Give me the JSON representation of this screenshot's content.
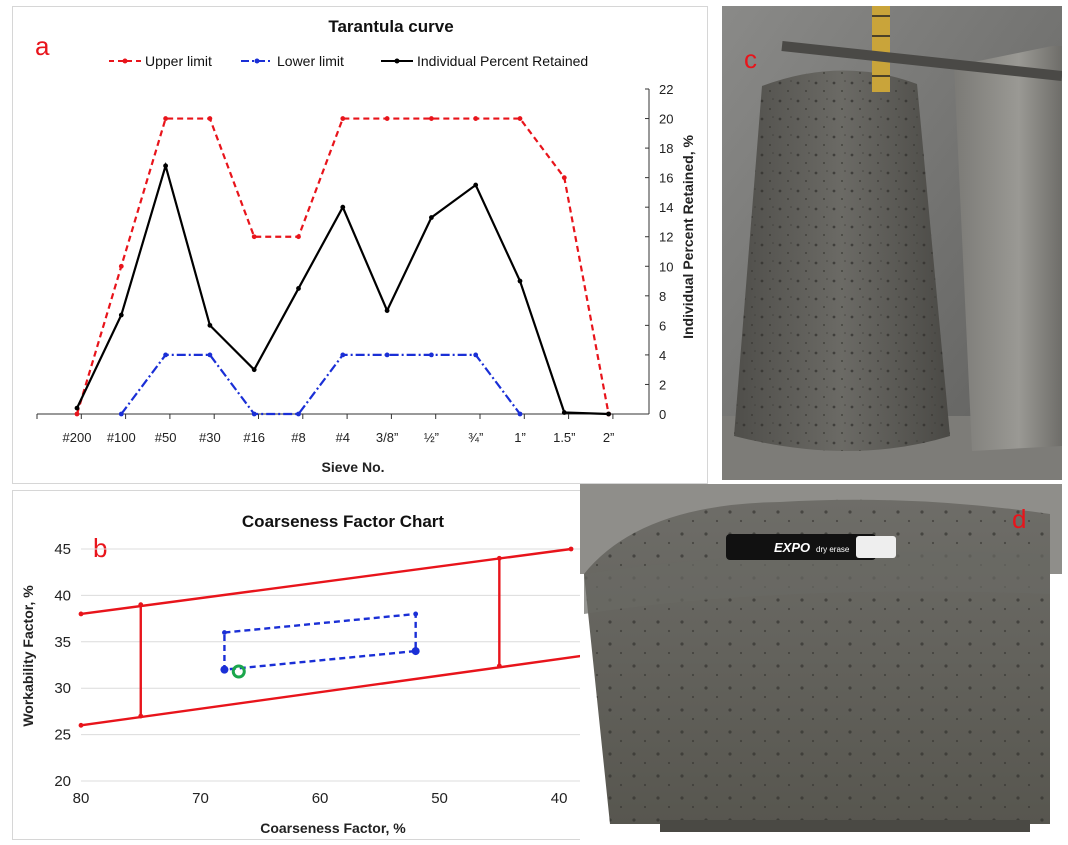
{
  "panels": {
    "a": {
      "letter": "a"
    },
    "b": {
      "letter": "b"
    },
    "c": {
      "letter": "c"
    },
    "d": {
      "letter": "d"
    }
  },
  "photo_d": {
    "marker_brand": "EXPO",
    "marker_text": "dry erase"
  },
  "colors": {
    "upper": "#e8141b",
    "lower": "#1a2fd6",
    "individual": "#000000",
    "zone": "#e8141b",
    "zone_inner": "#1a2fd6",
    "point": "#1aa64b"
  },
  "chart_data": [
    {
      "type": "line",
      "title": "Tarantula curve",
      "xlabel": "Sieve No.",
      "ylabel": "Individual Percent Retained, %",
      "ylim": [
        0,
        22
      ],
      "yticks": [
        "0",
        "2",
        "4",
        "6",
        "8",
        "10",
        "12",
        "14",
        "16",
        "18",
        "20",
        "22"
      ],
      "y_axis_side": "right",
      "grid": false,
      "legend_position": "top",
      "categories": [
        "#200",
        "#100",
        "#50",
        "#30",
        "#16",
        "#8",
        "#4",
        "3/8”",
        "½”",
        "¾”",
        "1”",
        "1.5”",
        "2”"
      ],
      "series": [
        {
          "name": "Upper limit",
          "style": "dashed",
          "values": [
            0,
            10,
            20,
            20,
            12,
            12,
            20,
            20,
            20,
            20,
            20,
            16,
            0
          ]
        },
        {
          "name": "Lower limit",
          "style": "dash-dot",
          "values": [
            null,
            0,
            4,
            4,
            0,
            0,
            4,
            4,
            4,
            4,
            0,
            null,
            null
          ]
        },
        {
          "name": "Individual Percent Retained",
          "style": "solid",
          "values": [
            0.4,
            6.7,
            16.8,
            6.0,
            3.0,
            8.5,
            14.0,
            7.0,
            13.3,
            15.5,
            9.0,
            0.1,
            0
          ]
        }
      ]
    },
    {
      "type": "scatter",
      "title": "Coarseness Factor Chart",
      "xlabel": "Coarseness Factor, %",
      "ylabel": "Workability Factor, %",
      "xlim": [
        80,
        38
      ],
      "ylim": [
        20,
        45
      ],
      "xticks": [
        "80",
        "70",
        "60",
        "50",
        "40"
      ],
      "yticks": [
        "20",
        "25",
        "30",
        "35",
        "40",
        "45"
      ],
      "grid": "horizontal",
      "boundary_lines": [
        {
          "role": "upper",
          "points": [
            [
              80,
              38
            ],
            [
              39,
              45
            ]
          ]
        },
        {
          "role": "lower",
          "points": [
            [
              80,
              26
            ],
            [
              38,
              33.5
            ]
          ]
        },
        {
          "role": "divider",
          "points": [
            [
              75,
              39
            ],
            [
              75,
              27
            ]
          ]
        },
        {
          "role": "divider",
          "points": [
            [
              45,
              44
            ],
            [
              45,
              32.4
            ]
          ]
        }
      ],
      "inner_zone": [
        [
          68,
          36
        ],
        [
          52,
          38
        ],
        [
          52,
          34
        ],
        [
          68,
          32
        ],
        [
          68,
          36
        ]
      ],
      "point": {
        "x": 66.8,
        "y": 31.8
      }
    }
  ]
}
